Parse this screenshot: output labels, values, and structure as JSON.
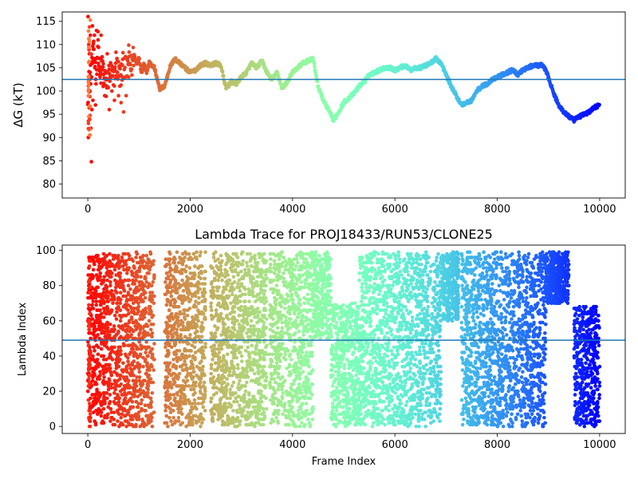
{
  "chart_data": [
    {
      "type": "scatter",
      "title": "",
      "xlabel": "",
      "ylabel": "ΔG (kT)",
      "xlim": [
        -500,
        10500
      ],
      "ylim": [
        77,
        117
      ],
      "xticks": [
        0,
        2000,
        4000,
        6000,
        8000,
        10000
      ],
      "yticks": [
        80,
        85,
        90,
        95,
        100,
        105,
        110,
        115
      ],
      "hline": 102.5,
      "colormap": "rainbow",
      "color_reversed": true,
      "trace_points": [
        [
          0,
          100
        ],
        [
          40,
          103
        ],
        [
          80,
          106
        ],
        [
          120,
          108
        ],
        [
          160,
          104
        ],
        [
          200,
          110
        ],
        [
          240,
          102
        ],
        [
          280,
          106
        ],
        [
          320,
          103
        ],
        [
          360,
          101
        ],
        [
          400,
          103
        ],
        [
          450,
          104
        ],
        [
          500,
          102
        ],
        [
          550,
          106
        ],
        [
          600,
          104
        ],
        [
          650,
          103
        ],
        [
          700,
          106
        ],
        [
          750,
          104
        ],
        [
          800,
          107
        ],
        [
          850,
          105
        ],
        [
          900,
          108
        ],
        [
          950,
          106
        ],
        [
          1000,
          107
        ],
        [
          1050,
          104
        ],
        [
          1100,
          106
        ],
        [
          1150,
          104
        ],
        [
          1200,
          106
        ],
        [
          1300,
          105
        ],
        [
          1400,
          100.5
        ],
        [
          1500,
          101
        ],
        [
          1550,
          103
        ],
        [
          1600,
          105
        ],
        [
          1700,
          107
        ],
        [
          1800,
          106
        ],
        [
          1900,
          105
        ],
        [
          2000,
          104
        ],
        [
          2100,
          104.5
        ],
        [
          2200,
          105.5
        ],
        [
          2300,
          106
        ],
        [
          2400,
          105.5
        ],
        [
          2500,
          106
        ],
        [
          2600,
          105.5
        ],
        [
          2700,
          100.5
        ],
        [
          2800,
          102
        ],
        [
          2900,
          101.5
        ],
        [
          3000,
          103
        ],
        [
          3100,
          104
        ],
        [
          3200,
          106
        ],
        [
          3300,
          105
        ],
        [
          3400,
          106.5
        ],
        [
          3500,
          104
        ],
        [
          3600,
          102.5
        ],
        [
          3700,
          104
        ],
        [
          3800,
          100.5
        ],
        [
          3900,
          102
        ],
        [
          4000,
          104
        ],
        [
          4100,
          105
        ],
        [
          4200,
          106
        ],
        [
          4300,
          106.5
        ],
        [
          4400,
          107
        ],
        [
          4450,
          104
        ],
        [
          4500,
          101
        ],
        [
          4600,
          98
        ],
        [
          4700,
          96
        ],
        [
          4800,
          93.7
        ],
        [
          4900,
          95.5
        ],
        [
          5000,
          97.5
        ],
        [
          5100,
          98.5
        ],
        [
          5200,
          99.5
        ],
        [
          5300,
          101
        ],
        [
          5400,
          102
        ],
        [
          5500,
          103.5
        ],
        [
          5600,
          104
        ],
        [
          5700,
          104.5
        ],
        [
          5800,
          105
        ],
        [
          5900,
          105
        ],
        [
          6000,
          104.5
        ],
        [
          6100,
          105
        ],
        [
          6200,
          105.5
        ],
        [
          6300,
          104.5
        ],
        [
          6400,
          105
        ],
        [
          6500,
          105
        ],
        [
          6600,
          105.5
        ],
        [
          6700,
          106
        ],
        [
          6800,
          107
        ],
        [
          6900,
          106
        ],
        [
          7000,
          103.5
        ],
        [
          7100,
          101
        ],
        [
          7200,
          99
        ],
        [
          7300,
          97
        ],
        [
          7400,
          97.5
        ],
        [
          7500,
          98
        ],
        [
          7600,
          100
        ],
        [
          7700,
          101
        ],
        [
          7800,
          101.5
        ],
        [
          7900,
          102.5
        ],
        [
          8000,
          103
        ],
        [
          8100,
          103.5
        ],
        [
          8200,
          104
        ],
        [
          8300,
          104.5
        ],
        [
          8400,
          103.5
        ],
        [
          8500,
          104.5
        ],
        [
          8600,
          105
        ],
        [
          8700,
          105.5
        ],
        [
          8800,
          105.5
        ],
        [
          8900,
          105.5
        ],
        [
          9000,
          103
        ],
        [
          9100,
          99.5
        ],
        [
          9200,
          97
        ],
        [
          9300,
          95.5
        ],
        [
          9400,
          94.5
        ],
        [
          9500,
          93.7
        ],
        [
          9600,
          94.5
        ],
        [
          9700,
          95
        ],
        [
          9800,
          95.5
        ],
        [
          9900,
          96.5
        ],
        [
          10000,
          97
        ]
      ],
      "early_outliers": [
        [
          5,
          116
        ],
        [
          10,
          90
        ],
        [
          15,
          100
        ],
        [
          20,
          110
        ],
        [
          30,
          108
        ],
        [
          40,
          100
        ],
        [
          50,
          112
        ],
        [
          60,
          92
        ],
        [
          70,
          84.8
        ],
        [
          80,
          96
        ],
        [
          90,
          114
        ],
        [
          100,
          98
        ],
        [
          110,
          109
        ],
        [
          130,
          112
        ],
        [
          150,
          97
        ],
        [
          170,
          113
        ],
        [
          200,
          111
        ],
        [
          230,
          105
        ],
        [
          260,
          112
        ],
        [
          300,
          101
        ],
        [
          330,
          99
        ],
        [
          380,
          108
        ],
        [
          420,
          96
        ],
        [
          470,
          100
        ],
        [
          520,
          98
        ],
        [
          570,
          107
        ],
        [
          600,
          99
        ],
        [
          650,
          97.5
        ],
        [
          700,
          95.5
        ],
        [
          750,
          99
        ],
        [
          800,
          103
        ]
      ]
    },
    {
      "type": "scatter",
      "title": "Lambda Trace for PROJ18433/RUN53/CLONE25",
      "xlabel": "Frame Index",
      "ylabel": "Lambda Index",
      "xlim": [
        -500,
        10500
      ],
      "ylim": [
        -4,
        103
      ],
      "xticks": [
        0,
        2000,
        4000,
        6000,
        8000,
        10000
      ],
      "yticks": [
        0,
        20,
        40,
        60,
        80,
        100
      ],
      "hline": 49,
      "colormap": "rainbow",
      "color_reversed": true,
      "lambda_max": 99,
      "dense_bands": [
        {
          "x": [
            0,
            220
          ],
          "y": [
            0,
            99
          ]
        },
        {
          "x": [
            220,
            1300
          ],
          "y": [
            0,
            99
          ]
        },
        {
          "x": [
            1500,
            2300
          ],
          "y": [
            0,
            99
          ]
        },
        {
          "x": [
            2400,
            3500
          ],
          "y": [
            0,
            99
          ]
        },
        {
          "x": [
            3550,
            4400
          ],
          "y": [
            0,
            99
          ]
        },
        {
          "x": [
            4400,
            4750
          ],
          "y": [
            50,
            99
          ]
        },
        {
          "x": [
            4750,
            5300
          ],
          "y": [
            0,
            70
          ]
        },
        {
          "x": [
            5300,
            6900
          ],
          "y": [
            0,
            99
          ]
        },
        {
          "x": [
            6900,
            7250
          ],
          "y": [
            60,
            99
          ]
        },
        {
          "x": [
            7300,
            8400
          ],
          "y": [
            0,
            99
          ]
        },
        {
          "x": [
            8400,
            8950
          ],
          "y": [
            0,
            99
          ]
        },
        {
          "x": [
            8950,
            9400
          ],
          "y": [
            70,
            99
          ]
        },
        {
          "x": [
            9500,
            10000
          ],
          "y": [
            0,
            68
          ]
        }
      ]
    }
  ]
}
